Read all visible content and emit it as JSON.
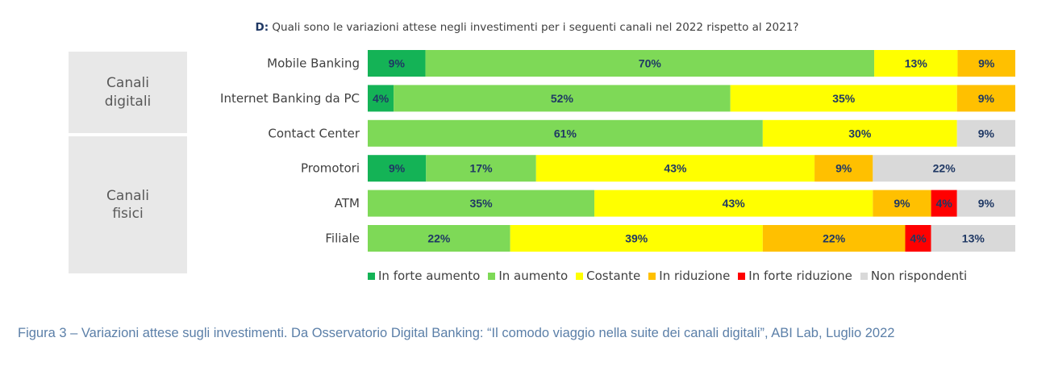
{
  "question": {
    "prefix": "D:",
    "text": "Quali sono le variazioni attese negli investimenti per i seguenti canali nel 2022 rispetto al 2021?"
  },
  "groups": [
    {
      "label": "Canali digitali"
    },
    {
      "label": "Canali fisici"
    }
  ],
  "chart_data": {
    "type": "bar",
    "orientation": "horizontal-stacked-100",
    "categories": [
      "Mobile Banking",
      "Internet Banking da PC",
      "Contact Center",
      "Promotori",
      "ATM",
      "Filiale"
    ],
    "series": [
      {
        "name": "In forte aumento",
        "color": "#14b356",
        "values": [
          9,
          4,
          0,
          9,
          0,
          0
        ]
      },
      {
        "name": "In aumento",
        "color": "#7ed957",
        "values": [
          70,
          52,
          61,
          17,
          35,
          22
        ]
      },
      {
        "name": "Costante",
        "color": "#ffff00",
        "values": [
          13,
          35,
          30,
          43,
          43,
          39
        ]
      },
      {
        "name": "In riduzione",
        "color": "#ffc000",
        "values": [
          9,
          9,
          0,
          9,
          9,
          22
        ]
      },
      {
        "name": "In forte riduzione",
        "color": "#ff0000",
        "values": [
          0,
          0,
          0,
          0,
          4,
          4
        ]
      },
      {
        "name": "Non rispondenti",
        "color": "#d9d9d9",
        "values": [
          0,
          0,
          9,
          22,
          9,
          13
        ]
      }
    ],
    "value_suffix": "%",
    "legend_position": "bottom"
  },
  "caption": "Figura 3 – Variazioni attese sugli investimenti. Da Osservatorio Digital Banking: “Il comodo viaggio nella suite dei canali digitali”, ABI Lab, Luglio 2022"
}
